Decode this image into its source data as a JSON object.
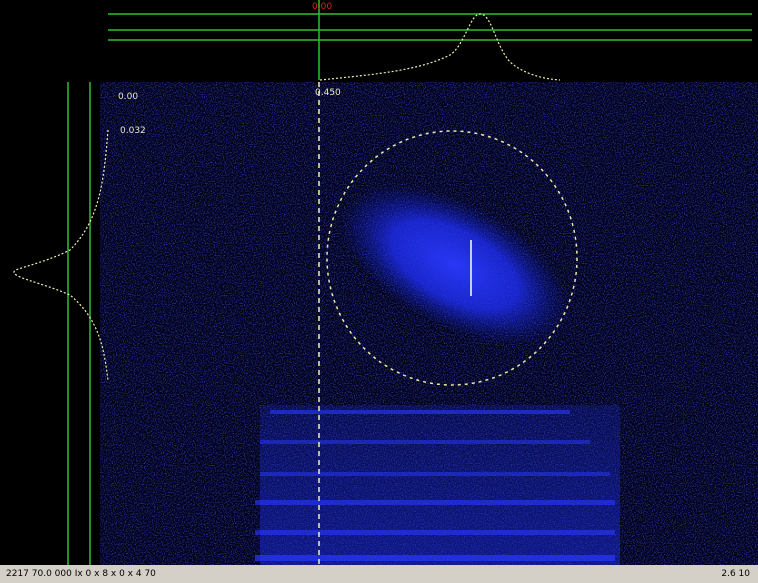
{
  "top_marker": "0.00",
  "labels": {
    "x_position": "0.450",
    "top_left": "0.00",
    "y_position": "0.032"
  },
  "status_bar": {
    "left": "2217 70.0 000 Ix 0 x 8 x 0 x 4 70",
    "right": "2.6 10"
  }
}
